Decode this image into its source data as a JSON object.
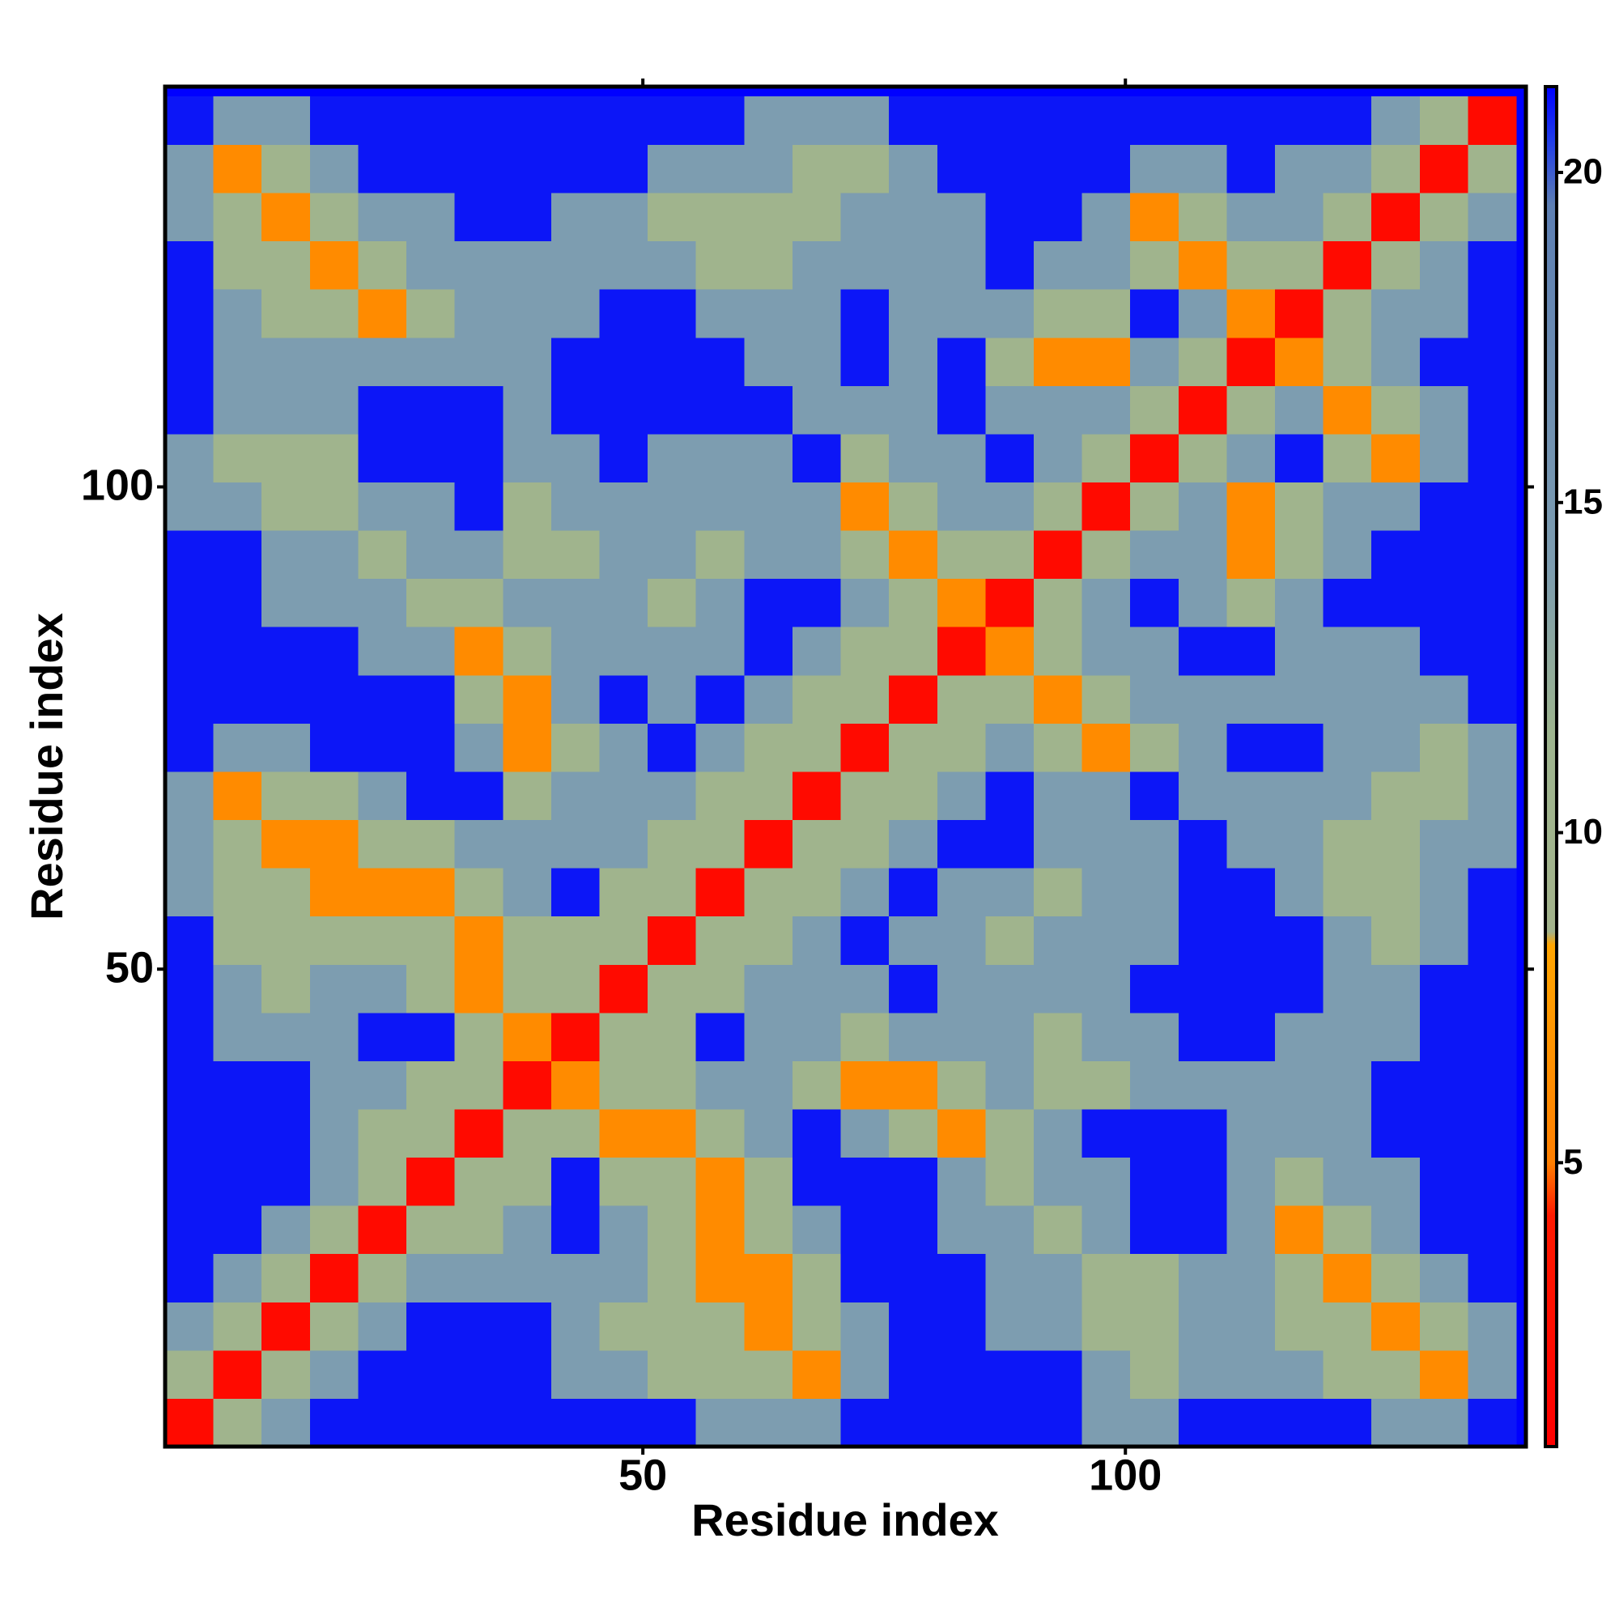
{
  "chart_data": {
    "type": "heatmap",
    "x_label": "Residue index",
    "y_label": "Residue index",
    "x": [
      3,
      8,
      13,
      18,
      23,
      28,
      33,
      38,
      43,
      48,
      53,
      58,
      63,
      68,
      73,
      78,
      83,
      88,
      93,
      98,
      103,
      108,
      113,
      118,
      123,
      128,
      133,
      138
    ],
    "y": [
      3,
      8,
      13,
      18,
      23,
      28,
      33,
      38,
      43,
      48,
      53,
      58,
      63,
      68,
      73,
      78,
      83,
      88,
      93,
      98,
      103,
      108,
      113,
      118,
      123,
      128,
      133,
      138
    ],
    "z": [
      [
        2,
        10,
        14,
        21,
        21,
        21,
        21,
        21,
        21,
        21,
        21,
        14,
        14,
        14,
        21,
        21,
        21,
        21,
        21,
        14,
        14,
        21,
        21,
        21,
        21,
        14,
        14,
        21
      ],
      [
        10,
        2,
        10,
        14,
        21,
        21,
        21,
        21,
        14,
        14,
        10,
        10,
        10,
        6,
        14,
        21,
        21,
        21,
        21,
        14,
        10,
        14,
        14,
        14,
        10,
        10,
        6,
        14
      ],
      [
        14,
        10,
        2,
        10,
        14,
        21,
        21,
        21,
        14,
        10,
        10,
        10,
        6,
        10,
        14,
        21,
        21,
        14,
        14,
        10,
        10,
        14,
        14,
        10,
        10,
        6,
        10,
        14
      ],
      [
        21,
        14,
        10,
        2,
        10,
        14,
        14,
        14,
        14,
        14,
        10,
        6,
        6,
        10,
        21,
        21,
        21,
        14,
        14,
        10,
        10,
        14,
        14,
        10,
        6,
        10,
        14,
        21
      ],
      [
        21,
        21,
        14,
        10,
        2,
        10,
        10,
        14,
        21,
        14,
        10,
        6,
        10,
        14,
        21,
        21,
        14,
        14,
        10,
        14,
        21,
        21,
        14,
        6,
        10,
        14,
        21,
        21
      ],
      [
        21,
        21,
        21,
        14,
        10,
        2,
        10,
        10,
        21,
        10,
        10,
        6,
        10,
        21,
        21,
        21,
        14,
        10,
        14,
        14,
        21,
        21,
        14,
        10,
        14,
        14,
        21,
        21
      ],
      [
        21,
        21,
        21,
        14,
        10,
        10,
        2,
        10,
        10,
        6,
        6,
        10,
        14,
        21,
        14,
        10,
        6,
        10,
        14,
        21,
        21,
        21,
        14,
        14,
        14,
        21,
        21,
        21
      ],
      [
        21,
        21,
        21,
        14,
        14,
        10,
        10,
        2,
        6,
        10,
        10,
        14,
        14,
        10,
        6,
        6,
        10,
        14,
        10,
        10,
        14,
        14,
        14,
        14,
        14,
        21,
        21,
        21
      ],
      [
        21,
        14,
        14,
        14,
        21,
        21,
        10,
        6,
        2,
        10,
        10,
        21,
        14,
        14,
        10,
        14,
        14,
        14,
        10,
        14,
        14,
        21,
        21,
        14,
        14,
        14,
        21,
        21
      ],
      [
        21,
        14,
        10,
        14,
        14,
        10,
        6,
        10,
        10,
        2,
        10,
        10,
        14,
        14,
        14,
        21,
        14,
        14,
        14,
        14,
        21,
        21,
        21,
        21,
        14,
        14,
        21,
        21
      ],
      [
        21,
        10,
        10,
        10,
        10,
        10,
        6,
        10,
        10,
        10,
        2,
        10,
        10,
        14,
        21,
        14,
        14,
        10,
        14,
        14,
        14,
        21,
        21,
        21,
        14,
        10,
        14,
        21
      ],
      [
        14,
        10,
        10,
        6,
        6,
        6,
        10,
        14,
        21,
        10,
        10,
        2,
        10,
        10,
        14,
        21,
        14,
        14,
        10,
        14,
        14,
        21,
        21,
        14,
        10,
        10,
        14,
        21
      ],
      [
        14,
        10,
        6,
        6,
        10,
        10,
        14,
        14,
        14,
        14,
        10,
        10,
        2,
        10,
        10,
        14,
        21,
        21,
        14,
        14,
        14,
        21,
        14,
        14,
        10,
        10,
        14,
        14
      ],
      [
        14,
        6,
        10,
        10,
        14,
        21,
        21,
        10,
        14,
        14,
        14,
        10,
        10,
        2,
        10,
        10,
        14,
        21,
        14,
        14,
        21,
        14,
        14,
        14,
        14,
        10,
        10,
        14
      ],
      [
        21,
        14,
        14,
        21,
        21,
        21,
        14,
        6,
        10,
        14,
        21,
        14,
        10,
        10,
        2,
        10,
        10,
        14,
        10,
        6,
        10,
        14,
        21,
        21,
        14,
        14,
        10,
        14
      ],
      [
        21,
        21,
        21,
        21,
        21,
        21,
        10,
        6,
        14,
        21,
        14,
        21,
        14,
        10,
        10,
        2,
        10,
        10,
        6,
        10,
        14,
        14,
        14,
        14,
        14,
        14,
        14,
        21
      ],
      [
        21,
        21,
        21,
        21,
        14,
        14,
        6,
        10,
        14,
        14,
        14,
        14,
        21,
        14,
        10,
        10,
        2,
        6,
        10,
        14,
        14,
        21,
        21,
        14,
        14,
        14,
        21,
        21
      ],
      [
        21,
        21,
        14,
        14,
        14,
        10,
        10,
        14,
        14,
        14,
        10,
        14,
        21,
        21,
        14,
        10,
        6,
        2,
        10,
        14,
        21,
        14,
        10,
        14,
        21,
        21,
        21,
        21
      ],
      [
        21,
        21,
        14,
        14,
        10,
        14,
        14,
        10,
        10,
        14,
        14,
        10,
        14,
        14,
        10,
        6,
        10,
        10,
        2,
        10,
        14,
        14,
        6,
        10,
        14,
        21,
        21,
        21
      ],
      [
        14,
        14,
        10,
        10,
        14,
        14,
        21,
        10,
        14,
        14,
        14,
        14,
        14,
        14,
        6,
        10,
        14,
        14,
        10,
        2,
        10,
        14,
        6,
        10,
        14,
        14,
        21,
        21
      ],
      [
        14,
        10,
        10,
        10,
        21,
        21,
        21,
        14,
        14,
        21,
        14,
        14,
        14,
        21,
        10,
        14,
        14,
        21,
        14,
        10,
        2,
        10,
        14,
        21,
        10,
        6,
        14,
        21
      ],
      [
        21,
        14,
        14,
        14,
        21,
        21,
        21,
        14,
        21,
        21,
        21,
        21,
        21,
        14,
        14,
        14,
        21,
        14,
        14,
        14,
        10,
        2,
        10,
        14,
        6,
        10,
        14,
        21
      ],
      [
        21,
        14,
        14,
        14,
        14,
        14,
        14,
        14,
        21,
        21,
        21,
        21,
        14,
        14,
        21,
        14,
        21,
        10,
        6,
        6,
        14,
        10,
        2,
        6,
        10,
        14,
        21,
        21
      ],
      [
        21,
        14,
        10,
        10,
        6,
        10,
        14,
        14,
        14,
        21,
        21,
        14,
        14,
        14,
        21,
        14,
        14,
        14,
        10,
        10,
        21,
        14,
        6,
        2,
        10,
        14,
        14,
        21
      ],
      [
        21,
        10,
        10,
        6,
        10,
        14,
        14,
        14,
        14,
        14,
        14,
        10,
        10,
        14,
        14,
        14,
        14,
        21,
        14,
        14,
        10,
        6,
        10,
        10,
        2,
        10,
        14,
        21
      ],
      [
        14,
        10,
        6,
        10,
        14,
        14,
        21,
        21,
        14,
        14,
        10,
        10,
        10,
        10,
        14,
        14,
        14,
        21,
        21,
        14,
        6,
        10,
        14,
        14,
        10,
        2,
        10,
        14
      ],
      [
        14,
        6,
        10,
        14,
        21,
        21,
        21,
        21,
        21,
        21,
        14,
        14,
        14,
        10,
        10,
        14,
        21,
        21,
        21,
        21,
        14,
        14,
        21,
        14,
        14,
        10,
        2,
        10
      ],
      [
        21,
        14,
        14,
        21,
        21,
        21,
        21,
        21,
        21,
        21,
        21,
        21,
        14,
        14,
        14,
        21,
        21,
        21,
        21,
        21,
        21,
        21,
        21,
        21,
        21,
        14,
        10,
        2
      ]
    ],
    "xlim": [
      0.5,
      141.5
    ],
    "ylim": [
      0.5,
      141.5
    ],
    "xticks": [
      50,
      100
    ],
    "yticks": [
      50,
      100
    ],
    "zlim": [
      0.7,
      21.3
    ],
    "zticks": [
      5,
      10,
      15,
      20
    ],
    "background": "#0000ff",
    "colorscale": [
      {
        "value": 0.7,
        "color": "#ff0000"
      },
      {
        "value": 4.2,
        "color": "#ff1a00"
      },
      {
        "value": 5,
        "color": "#ff7f00"
      },
      {
        "value": 8.3,
        "color": "#ffa500"
      },
      {
        "value": 8.5,
        "color": "#a3b38c"
      },
      {
        "value": 11.5,
        "color": "#9db48e"
      },
      {
        "value": 14,
        "color": "#7d9db0"
      },
      {
        "value": 19.5,
        "color": "#5d7fb3"
      },
      {
        "value": 20.5,
        "color": "#1f3bea"
      },
      {
        "value": 21.3,
        "color": "#0000ff"
      }
    ],
    "grid": false
  }
}
